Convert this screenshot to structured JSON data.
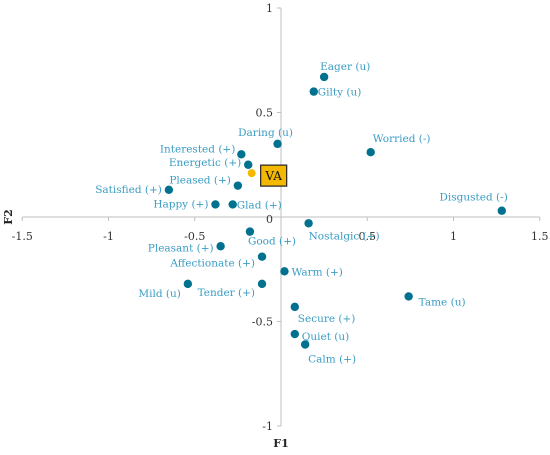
{
  "chart_data": {
    "type": "scatter",
    "title": "",
    "xlabel": "F1",
    "ylabel": "F2",
    "xlim": [
      -1.5,
      1.5
    ],
    "ylim": [
      -1,
      1
    ],
    "x_ticks": [
      "-1.5",
      "-1",
      "-0.5",
      "0",
      "0.5",
      "1",
      "1.5"
    ],
    "y_ticks": [
      "1",
      "0.5",
      "0",
      "-0.5",
      "-1"
    ],
    "grid": false,
    "colors": {
      "point": "#00718f",
      "label": "#3a9cc4",
      "highlight": "#f5b800"
    },
    "points": [
      {
        "label": "Eager (u)",
        "x": 0.25,
        "y": 0.67
      },
      {
        "label": "Gilty (u)",
        "x": 0.19,
        "y": 0.6
      },
      {
        "label": "Worried (-)",
        "x": 0.52,
        "y": 0.31
      },
      {
        "label": "Daring (u)",
        "x": -0.02,
        "y": 0.35
      },
      {
        "label": "Interested (+)",
        "x": -0.23,
        "y": 0.3
      },
      {
        "label": "Energetic (+)",
        "x": -0.19,
        "y": 0.25
      },
      {
        "label": "Pleased (+)",
        "x": -0.25,
        "y": 0.15
      },
      {
        "label": "Satisfied (+)",
        "x": -0.65,
        "y": 0.13
      },
      {
        "label": "Happy (+)",
        "x": -0.38,
        "y": 0.06
      },
      {
        "label": "Glad (+)",
        "x": -0.28,
        "y": 0.06
      },
      {
        "label": "Disgusted (-)",
        "x": 1.28,
        "y": 0.03
      },
      {
        "label": "Good (+)",
        "x": -0.18,
        "y": -0.07
      },
      {
        "label": "Nostalgic (+)",
        "x": 0.16,
        "y": -0.03
      },
      {
        "label": "Pleasant (+)",
        "x": -0.35,
        "y": -0.14
      },
      {
        "label": "Affectionate (+)",
        "x": -0.11,
        "y": -0.19
      },
      {
        "label": "Warm (+)",
        "x": 0.02,
        "y": -0.26
      },
      {
        "label": "Mild (u)",
        "x": -0.54,
        "y": -0.32
      },
      {
        "label": "Tender (+)",
        "x": -0.11,
        "y": -0.32
      },
      {
        "label": "Tame (u)",
        "x": 0.74,
        "y": -0.38
      },
      {
        "label": "Secure (+)",
        "x": 0.08,
        "y": -0.43
      },
      {
        "label": "Quiet (u)",
        "x": 0.08,
        "y": -0.56
      },
      {
        "label": "Calm (+)",
        "x": 0.14,
        "y": -0.61
      }
    ],
    "highlight": {
      "label": "VA",
      "x": -0.17,
      "y": 0.21
    }
  }
}
